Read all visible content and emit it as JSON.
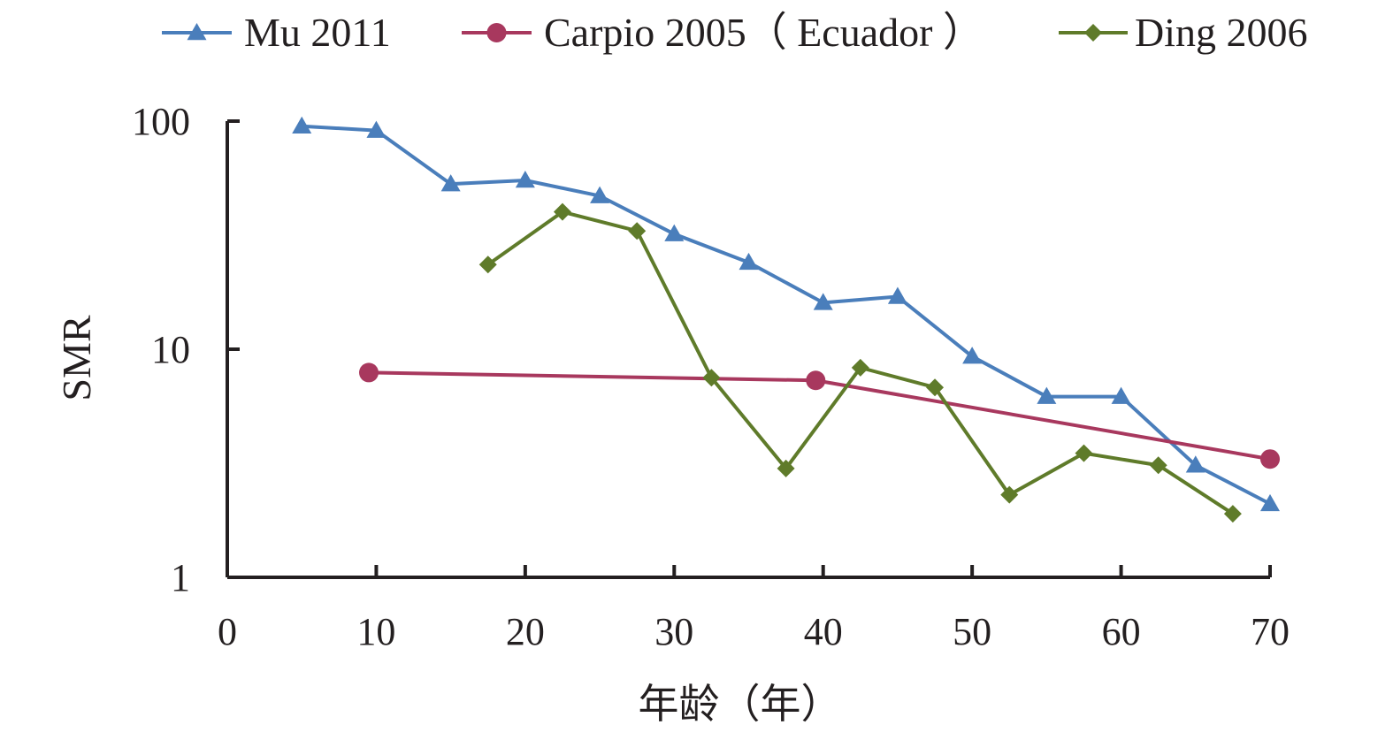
{
  "chart_data": {
    "type": "line",
    "xlabel": "年龄（年）",
    "ylabel": "SMR",
    "xlim": [
      0,
      70
    ],
    "ylim": [
      1,
      100
    ],
    "y_scale": "log",
    "x_ticks": [
      "0",
      "10",
      "20",
      "30",
      "40",
      "50",
      "60",
      "70"
    ],
    "y_ticks": [
      "1",
      "10",
      "100"
    ],
    "grid": false,
    "legend_position": "top",
    "series": [
      {
        "name": "Mu 2011",
        "color": "#4a7ebb",
        "marker": "triangle",
        "x": [
          5,
          10,
          15,
          20,
          25,
          30,
          35,
          40,
          45,
          50,
          55,
          60,
          65,
          70
        ],
        "y": [
          95,
          91,
          53,
          55,
          47,
          32,
          24,
          16,
          17,
          9.3,
          6.2,
          6.2,
          3.1,
          2.1
        ]
      },
      {
        "name": "Carpio 2005（ Ecuador ）",
        "color": "#a8385e",
        "marker": "circle",
        "x": [
          9.5,
          39.5,
          70
        ],
        "y": [
          7.9,
          7.3,
          3.3
        ]
      },
      {
        "name": "Ding 2006",
        "color": "#5f7b2a",
        "marker": "diamond",
        "x": [
          17.5,
          22.5,
          27.5,
          32.5,
          37.5,
          42.5,
          47.5,
          52.5,
          57.5,
          62.5,
          67.5
        ],
        "y": [
          23.5,
          40,
          33,
          7.5,
          3,
          8.3,
          6.8,
          2.3,
          3.5,
          3.1,
          1.9
        ]
      }
    ]
  }
}
